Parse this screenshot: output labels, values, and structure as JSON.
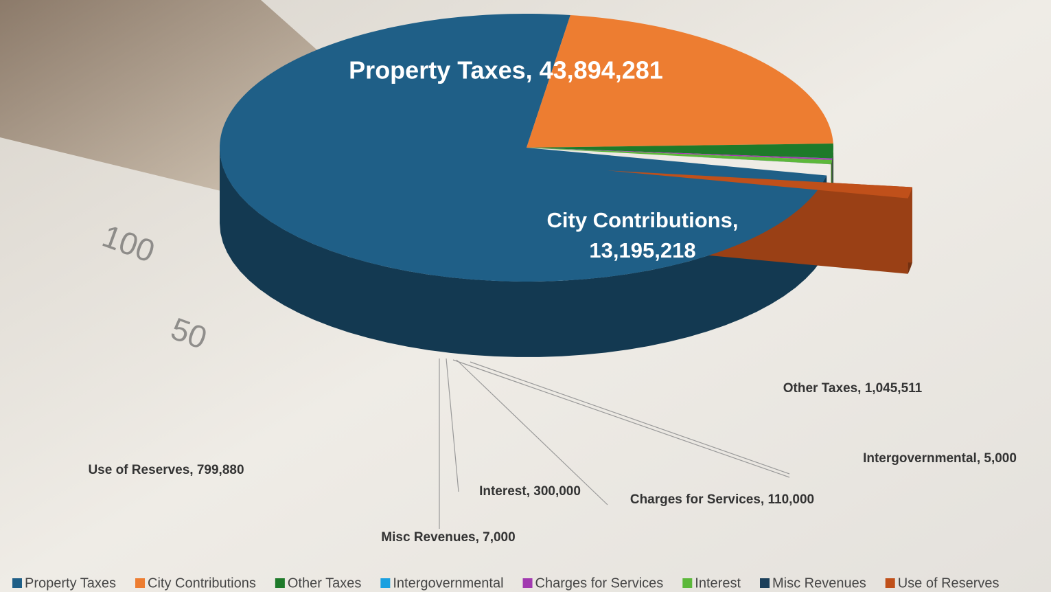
{
  "chart_data": {
    "type": "pie",
    "categories": [
      "Property Taxes",
      "City Contributions",
      "Other Taxes",
      "Intergovernmental",
      "Charges for Services",
      "Interest",
      "Misc Revenues",
      "Use of Reserves"
    ],
    "values": [
      43894281,
      13195218,
      1045511,
      5000,
      110000,
      300000,
      7000,
      799880
    ],
    "value_labels": [
      "Property Taxes,  43,894,281",
      "City Contributions,  13,195,218",
      "Other Taxes,  1,045,511",
      "Intergovernmental,  5,000",
      "Charges for Services,  110,000",
      "Interest,  300,000",
      "Misc Revenues,  7,000",
      "Use of Reserves,  799,880"
    ],
    "colors": [
      "#1f5f87",
      "#ed7d31",
      "#1e7a2a",
      "#1aa0e0",
      "#a23ab0",
      "#5cb83a",
      "#1b3f5a",
      "#c0501a"
    ],
    "legend": "bottom"
  }
}
